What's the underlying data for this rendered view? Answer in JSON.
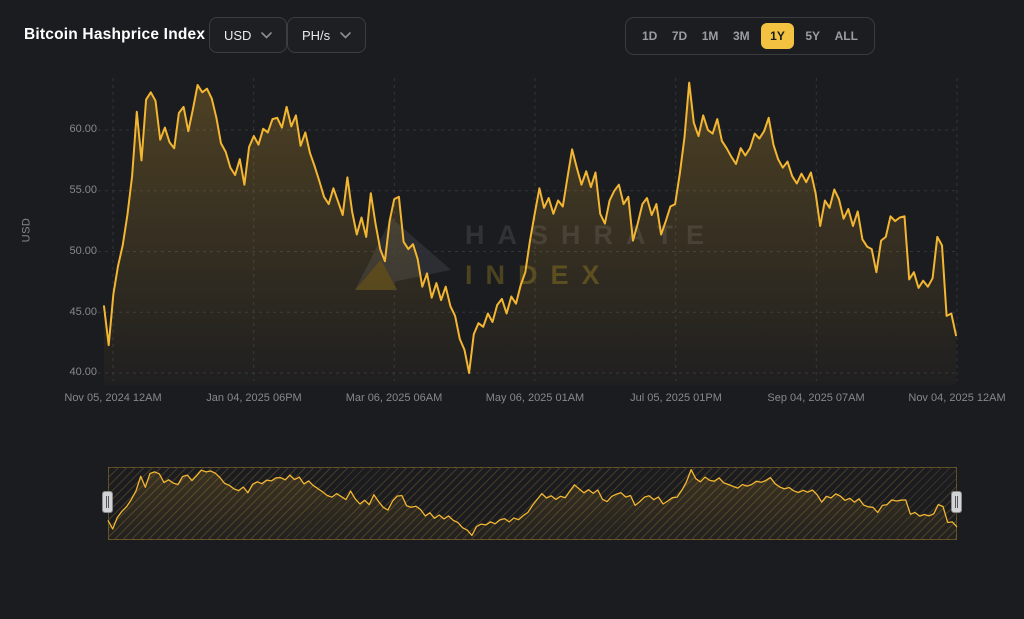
{
  "header": {
    "title": "Bitcoin Hashprice Index",
    "currency_dropdown": {
      "value": "USD"
    },
    "unit_dropdown": {
      "value": "PH/s"
    },
    "range_buttons": [
      {
        "label": "1D",
        "selected": false
      },
      {
        "label": "7D",
        "selected": false
      },
      {
        "label": "1M",
        "selected": false
      },
      {
        "label": "3M",
        "selected": false
      },
      {
        "label": "1Y",
        "selected": true
      },
      {
        "label": "5Y",
        "selected": false
      },
      {
        "label": "ALL",
        "selected": false
      }
    ]
  },
  "watermark": {
    "line1": "HASHRATE",
    "line2": "INDEX"
  },
  "colors": {
    "background": "#1b1c1f",
    "line": "#f2b632",
    "accent_yellow": "#f2c240",
    "grid": "#33353a",
    "tick_text": "#85888e"
  },
  "chart_data": {
    "type": "area",
    "title": "Bitcoin Hashprice Index",
    "ylabel": "USD",
    "selected_range": "1Y",
    "grid": "dashed",
    "x_axis_type": "time",
    "x_tick_labels": [
      "Nov 05, 2024 12AM",
      "Jan 04, 2025 06PM",
      "Mar 06, 2025 06AM",
      "May 06, 2025 01AM",
      "Jul 05, 2025 01PM",
      "Sep 04, 2025 07AM",
      "Nov 04, 2025 12AM"
    ],
    "y_ticks": [
      40,
      45,
      50,
      55,
      60
    ],
    "y_tick_labels": [
      "40.00",
      "45.00",
      "50.00",
      "55.00",
      "60.00"
    ],
    "ylim": [
      39.5,
      64.5
    ],
    "sample_interval_days": 2,
    "line_color": "#f2b632",
    "values": [
      45.5,
      42.3,
      46.5,
      48.8,
      50.5,
      53.0,
      56.2,
      61.5,
      57.5,
      62.5,
      63.1,
      62.4,
      59.2,
      60.2,
      59.0,
      58.5,
      61.4,
      61.9,
      59.9,
      61.7,
      63.7,
      63.1,
      63.4,
      62.6,
      61.0,
      58.9,
      58.2,
      56.9,
      56.3,
      57.6,
      55.5,
      58.6,
      59.5,
      58.8,
      60.1,
      59.8,
      60.9,
      61.0,
      60.2,
      61.9,
      60.3,
      61.2,
      58.7,
      59.8,
      58.1,
      57.0,
      55.8,
      54.5,
      53.9,
      55.2,
      54.1,
      53.0,
      56.1,
      53.3,
      51.4,
      52.8,
      51.2,
      54.8,
      52.3,
      50.2,
      49.2,
      52.5,
      54.3,
      54.5,
      50.8,
      50.2,
      50.6,
      49.4,
      47.1,
      48.2,
      46.2,
      47.4,
      46.0,
      47.1,
      45.5,
      44.7,
      42.8,
      41.9,
      40.0,
      43.2,
      44.1,
      43.8,
      44.9,
      44.2,
      45.6,
      46.1,
      44.9,
      46.3,
      45.7,
      47.2,
      48.3,
      50.9,
      53.1,
      55.2,
      53.6,
      54.4,
      53.1,
      54.2,
      53.7,
      56.1,
      58.4,
      56.9,
      55.5,
      56.6,
      55.3,
      56.5,
      53.1,
      52.3,
      54.2,
      55.0,
      55.5,
      53.9,
      54.5,
      50.9,
      52.3,
      53.9,
      54.4,
      53.0,
      53.9,
      51.4,
      52.5,
      53.7,
      53.9,
      56.4,
      59.4,
      63.9,
      60.6,
      59.5,
      61.2,
      60.0,
      59.7,
      60.9,
      59.1,
      58.5,
      57.8,
      57.2,
      58.5,
      57.9,
      58.5,
      59.7,
      59.3,
      59.9,
      61.0,
      58.8,
      57.6,
      56.9,
      57.4,
      56.2,
      55.6,
      56.4,
      55.7,
      56.5,
      54.8,
      52.1,
      54.2,
      53.6,
      55.1,
      54.3,
      52.7,
      53.5,
      52.1,
      53.3,
      51.0,
      50.4,
      50.2,
      48.3,
      50.9,
      51.2,
      52.9,
      52.5,
      52.8,
      52.9,
      47.7,
      48.3,
      47.0,
      47.6,
      47.1,
      47.8,
      51.2,
      50.5,
      44.7,
      44.9,
      43.1
    ]
  }
}
